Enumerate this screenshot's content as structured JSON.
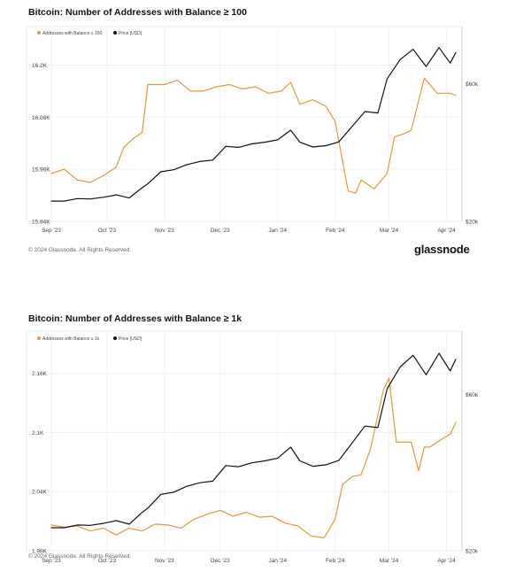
{
  "colors": {
    "address_series": "#E39A30",
    "price_series": "#111111",
    "grid": "#ececec",
    "frame": "#e2e2e2"
  },
  "footer": {
    "copyright": "© 2024 Glassnode. All Rights Reserved.",
    "brand": "glassnode"
  },
  "chart_data": [
    {
      "type": "line",
      "title": "Bitcoin: Number of Addresses with Balance ≥ 100",
      "legend_placement": "top-left",
      "grid": true,
      "x_ticks": [
        "Sep '23",
        "Oct '23",
        "Nov '23",
        "Dec '23",
        "Jan '24",
        "Feb '24",
        "Mar '24",
        "Apr '24"
      ],
      "x_range": [
        "2023-09-01",
        "2024-04-06"
      ],
      "y_left": {
        "ticks": [
          "15.84K",
          "15.96K",
          "16.08K",
          "16.2K"
        ],
        "range": [
          15840,
          16260
        ]
      },
      "y_right": {
        "ticks": [
          "$20k",
          "$60k"
        ],
        "range": [
          20000,
          73000
        ]
      },
      "series": [
        {
          "name": "Addresses with Balance ≥ 100",
          "axis": "left",
          "x": [
            "2023-09-01",
            "2023-09-08",
            "2023-09-15",
            "2023-09-22",
            "2023-09-29",
            "2023-10-06",
            "2023-10-10",
            "2023-10-15",
            "2023-10-20",
            "2023-10-23",
            "2023-11-01",
            "2023-11-08",
            "2023-11-15",
            "2023-11-22",
            "2023-11-29",
            "2023-12-06",
            "2023-12-13",
            "2023-12-20",
            "2023-12-27",
            "2024-01-03",
            "2024-01-08",
            "2024-01-13",
            "2024-01-20",
            "2024-01-27",
            "2024-02-01",
            "2024-02-08",
            "2024-02-12",
            "2024-02-15",
            "2024-02-22",
            "2024-02-29",
            "2024-03-04",
            "2024-03-08",
            "2024-03-13",
            "2024-03-20",
            "2024-03-27",
            "2024-04-03",
            "2024-04-06"
          ],
          "y": [
            15950,
            15960,
            15935,
            15930,
            15945,
            15965,
            16010,
            16030,
            16045,
            16155,
            16155,
            16165,
            16140,
            16140,
            16150,
            16155,
            16145,
            16150,
            16135,
            16140,
            16160,
            16110,
            16120,
            16105,
            16070,
            15910,
            15905,
            15935,
            15915,
            15950,
            16035,
            16040,
            16050,
            16170,
            16135,
            16135,
            16130
          ]
        },
        {
          "name": "Price [USD]",
          "axis": "right",
          "x": [
            "2023-09-01",
            "2023-09-08",
            "2023-09-15",
            "2023-09-22",
            "2023-09-29",
            "2023-10-06",
            "2023-10-13",
            "2023-10-20",
            "2023-10-23",
            "2023-10-30",
            "2023-11-06",
            "2023-11-13",
            "2023-11-20",
            "2023-11-27",
            "2023-12-04",
            "2023-12-11",
            "2023-12-18",
            "2023-12-25",
            "2024-01-01",
            "2024-01-08",
            "2024-01-13",
            "2024-01-20",
            "2024-01-27",
            "2024-02-03",
            "2024-02-10",
            "2024-02-17",
            "2024-02-24",
            "2024-02-29",
            "2024-03-07",
            "2024-03-14",
            "2024-03-21",
            "2024-03-28",
            "2024-04-03",
            "2024-04-06"
          ],
          "y": [
            25900,
            25900,
            26600,
            26500,
            27000,
            27700,
            26800,
            29800,
            30900,
            34400,
            35000,
            36500,
            37400,
            37800,
            41800,
            41500,
            42500,
            43000,
            43700,
            46500,
            43000,
            41600,
            42000,
            43100,
            47500,
            51900,
            51500,
            61400,
            67000,
            70000,
            65000,
            70500,
            66000,
            69000
          ]
        }
      ]
    },
    {
      "type": "line",
      "title": "Bitcoin: Number of Addresses with Balance ≥ 1k",
      "legend_placement": "top-left",
      "grid": true,
      "x_ticks": [
        "Sep '23",
        "Oct '23",
        "Nov '23",
        "Dec '23",
        "Jan '24",
        "Feb '24",
        "Mar '24",
        "Apr '24"
      ],
      "x_range": [
        "2023-09-01",
        "2024-04-06"
      ],
      "y_left": {
        "ticks": [
          "1.98K",
          "2.04K",
          "2.1K",
          "2.16K"
        ],
        "range": [
          1980,
          2190
        ]
      },
      "y_right": {
        "ticks": [
          "$20k",
          "$60k"
        ],
        "range": [
          20000,
          73000
        ]
      },
      "series": [
        {
          "name": "Addresses with Balance ≥ 1k",
          "axis": "left",
          "x": [
            "2023-09-01",
            "2023-09-08",
            "2023-09-15",
            "2023-09-22",
            "2023-09-29",
            "2023-10-06",
            "2023-10-13",
            "2023-10-20",
            "2023-10-27",
            "2023-11-03",
            "2023-11-10",
            "2023-11-17",
            "2023-11-24",
            "2023-12-01",
            "2023-12-08",
            "2023-12-15",
            "2023-12-22",
            "2023-12-29",
            "2024-01-05",
            "2024-01-12",
            "2024-01-19",
            "2024-01-26",
            "2024-02-01",
            "2024-02-05",
            "2024-02-10",
            "2024-02-15",
            "2024-02-20",
            "2024-02-27",
            "2024-03-01",
            "2024-03-05",
            "2024-03-08",
            "2024-03-13",
            "2024-03-17",
            "2024-03-20",
            "2024-03-23",
            "2024-03-27",
            "2024-03-31",
            "2024-04-03",
            "2024-04-06"
          ],
          "y": [
            2006,
            2004,
            2005,
            2000,
            2003,
            1996,
            2003,
            2000,
            2007,
            2006,
            2003,
            2012,
            2017,
            2021,
            2015,
            2019,
            2014,
            2015,
            2008,
            2005,
            1995,
            1993,
            2012,
            2047,
            2055,
            2057,
            2083,
            2143,
            2155,
            2090,
            2090,
            2090,
            2061,
            2085,
            2085,
            2090,
            2095,
            2098,
            2110
          ]
        },
        {
          "name": "Price [USD]",
          "axis": "right",
          "x": [
            "2023-09-01",
            "2023-09-08",
            "2023-09-15",
            "2023-09-22",
            "2023-09-29",
            "2023-10-06",
            "2023-10-13",
            "2023-10-20",
            "2023-10-23",
            "2023-10-30",
            "2023-11-06",
            "2023-11-13",
            "2023-11-20",
            "2023-11-27",
            "2023-12-04",
            "2023-12-11",
            "2023-12-18",
            "2023-12-25",
            "2024-01-01",
            "2024-01-08",
            "2024-01-13",
            "2024-01-20",
            "2024-01-27",
            "2024-02-03",
            "2024-02-10",
            "2024-02-17",
            "2024-02-24",
            "2024-02-29",
            "2024-03-07",
            "2024-03-14",
            "2024-03-21",
            "2024-03-28",
            "2024-04-03",
            "2024-04-06"
          ],
          "y": [
            25900,
            25900,
            26600,
            26500,
            27000,
            27700,
            26800,
            29800,
            30900,
            34400,
            35000,
            36500,
            37400,
            37800,
            41800,
            41500,
            42500,
            43000,
            43700,
            46500,
            43000,
            41600,
            42000,
            43100,
            47500,
            51900,
            51500,
            61400,
            67000,
            70000,
            65000,
            70500,
            66000,
            69000
          ]
        }
      ]
    }
  ]
}
